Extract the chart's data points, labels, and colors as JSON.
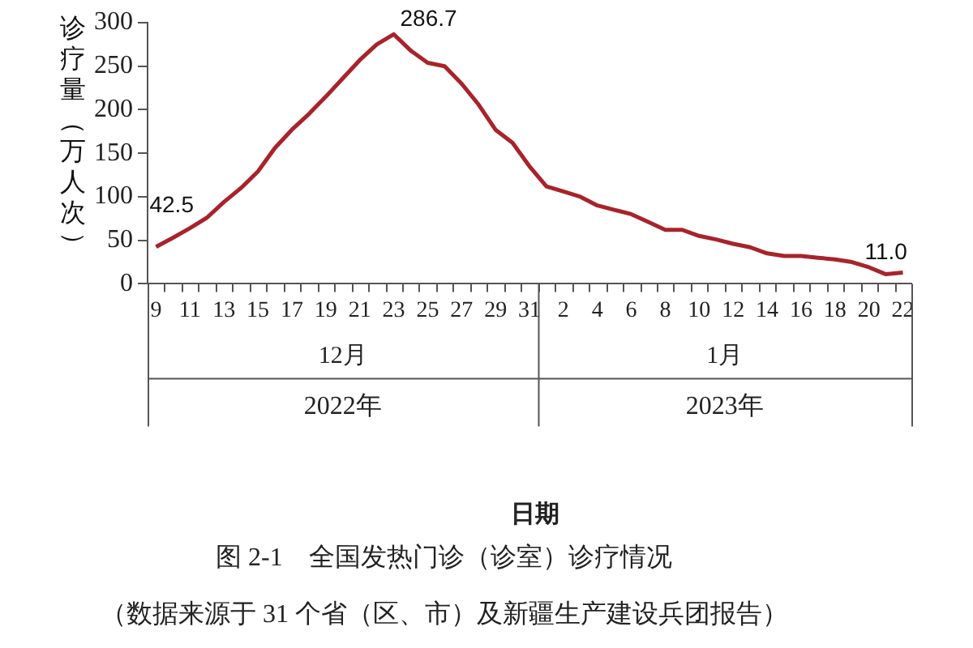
{
  "chart_data": {
    "type": "line",
    "ylabel": "诊疗量（万人次）",
    "categories": [
      "9",
      null,
      "11",
      null,
      "13",
      null,
      "15",
      null,
      "17",
      null,
      "19",
      null,
      "21",
      null,
      "23",
      null,
      "25",
      null,
      "27",
      null,
      "29",
      null,
      "31",
      null,
      "2",
      null,
      "4",
      null,
      "6",
      null,
      "8",
      null,
      "10",
      null,
      "12",
      null,
      "14",
      null,
      "16",
      null,
      "18",
      null,
      "20",
      null,
      "22"
    ],
    "series": [
      {
        "color": "#a8232b",
        "values": [
          42.5,
          53,
          64,
          76,
          94,
          110,
          129,
          156,
          177,
          195,
          215,
          236,
          257,
          275,
          286.7,
          268,
          254,
          250,
          230,
          206,
          177,
          162,
          135,
          112,
          106,
          100,
          90,
          85,
          80,
          71,
          62,
          62,
          55,
          51,
          46,
          42,
          35,
          32,
          32,
          30,
          28,
          25,
          19,
          11.0,
          13
        ],
        "value_labels": [
          "42.5",
          null,
          null,
          null,
          null,
          null,
          null,
          null,
          null,
          null,
          null,
          null,
          null,
          null,
          "286.7",
          null,
          null,
          null,
          null,
          null,
          null,
          null,
          null,
          null,
          null,
          null,
          null,
          null,
          null,
          null,
          null,
          null,
          null,
          null,
          null,
          null,
          null,
          null,
          null,
          null,
          null,
          null,
          null,
          "11.0",
          null
        ]
      }
    ],
    "ylim": [
      0,
      300
    ],
    "yticks": [
      0,
      50,
      100,
      150,
      200,
      250,
      300
    ],
    "grid": false,
    "legend": false,
    "marker": "none",
    "line_style": "solid",
    "annotations": [
      "12月",
      "1月",
      "2022年",
      "2023年",
      "日期",
      "图 2-1　全国发热门诊（诊室）诊疗情况",
      "（数据来源于 31 个省（区、市）及新疆生产建设兵团报告）"
    ]
  }
}
